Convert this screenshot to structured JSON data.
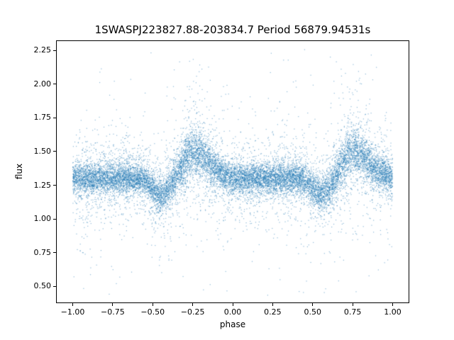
{
  "figure": {
    "background": "#ffffff"
  },
  "chart_data": {
    "type": "scatter",
    "title": "1SWASPJ223827.88-203834.7 Period 56879.94531s",
    "xlabel": "phase",
    "ylabel": "flux",
    "xlim": [
      -1.1,
      1.1
    ],
    "ylim": [
      0.38,
      2.32
    ],
    "xtick_values": [
      -1.0,
      -0.75,
      -0.5,
      -0.25,
      0.0,
      0.25,
      0.5,
      0.75,
      1.0
    ],
    "xtick_labels": [
      "−1.00",
      "−0.75",
      "−0.50",
      "−0.25",
      "0.00",
      "0.25",
      "0.50",
      "0.75",
      "1.00"
    ],
    "ytick_values": [
      0.5,
      0.75,
      1.0,
      1.25,
      1.5,
      1.75,
      2.0,
      2.25
    ],
    "ytick_labels": [
      "0.50",
      "0.75",
      "1.00",
      "1.25",
      "1.50",
      "1.75",
      "2.00",
      "2.25"
    ],
    "grid": false,
    "legend": null,
    "marker_color": "#1f77b4",
    "marker_size_px": 1.2,
    "marker_alpha": 0.5,
    "n_points": 16000,
    "model": {
      "description": "Phase-folded light curve plotted over two cycles (phase −1 to 1): dense band near flux 1.30, a dip to ~1.18 near phase 0.55 (and −0.45), a peak to ~1.50 near phase 0.75 (and −0.25), with heavy-tailed vertical scatter from ~0.45 to ~2.25.",
      "base_flux": 1.3,
      "peak": {
        "phase": 0.75,
        "amplitude": 0.2,
        "sigma_left": 0.055,
        "sigma_right": 0.1
      },
      "dip": {
        "phase": 0.55,
        "depth": -0.12,
        "sigma": 0.05
      },
      "peak_noise_boost": 0.5,
      "noise_components": [
        {
          "weight": 0.7,
          "sigma": 0.055
        },
        {
          "weight": 0.22,
          "sigma": 0.13
        },
        {
          "weight": 0.065,
          "sigma": 0.28
        },
        {
          "weight": 0.015,
          "sigma": 0.45
        }
      ],
      "flux_range": [
        0.43,
        2.27
      ],
      "seed": 42
    }
  }
}
